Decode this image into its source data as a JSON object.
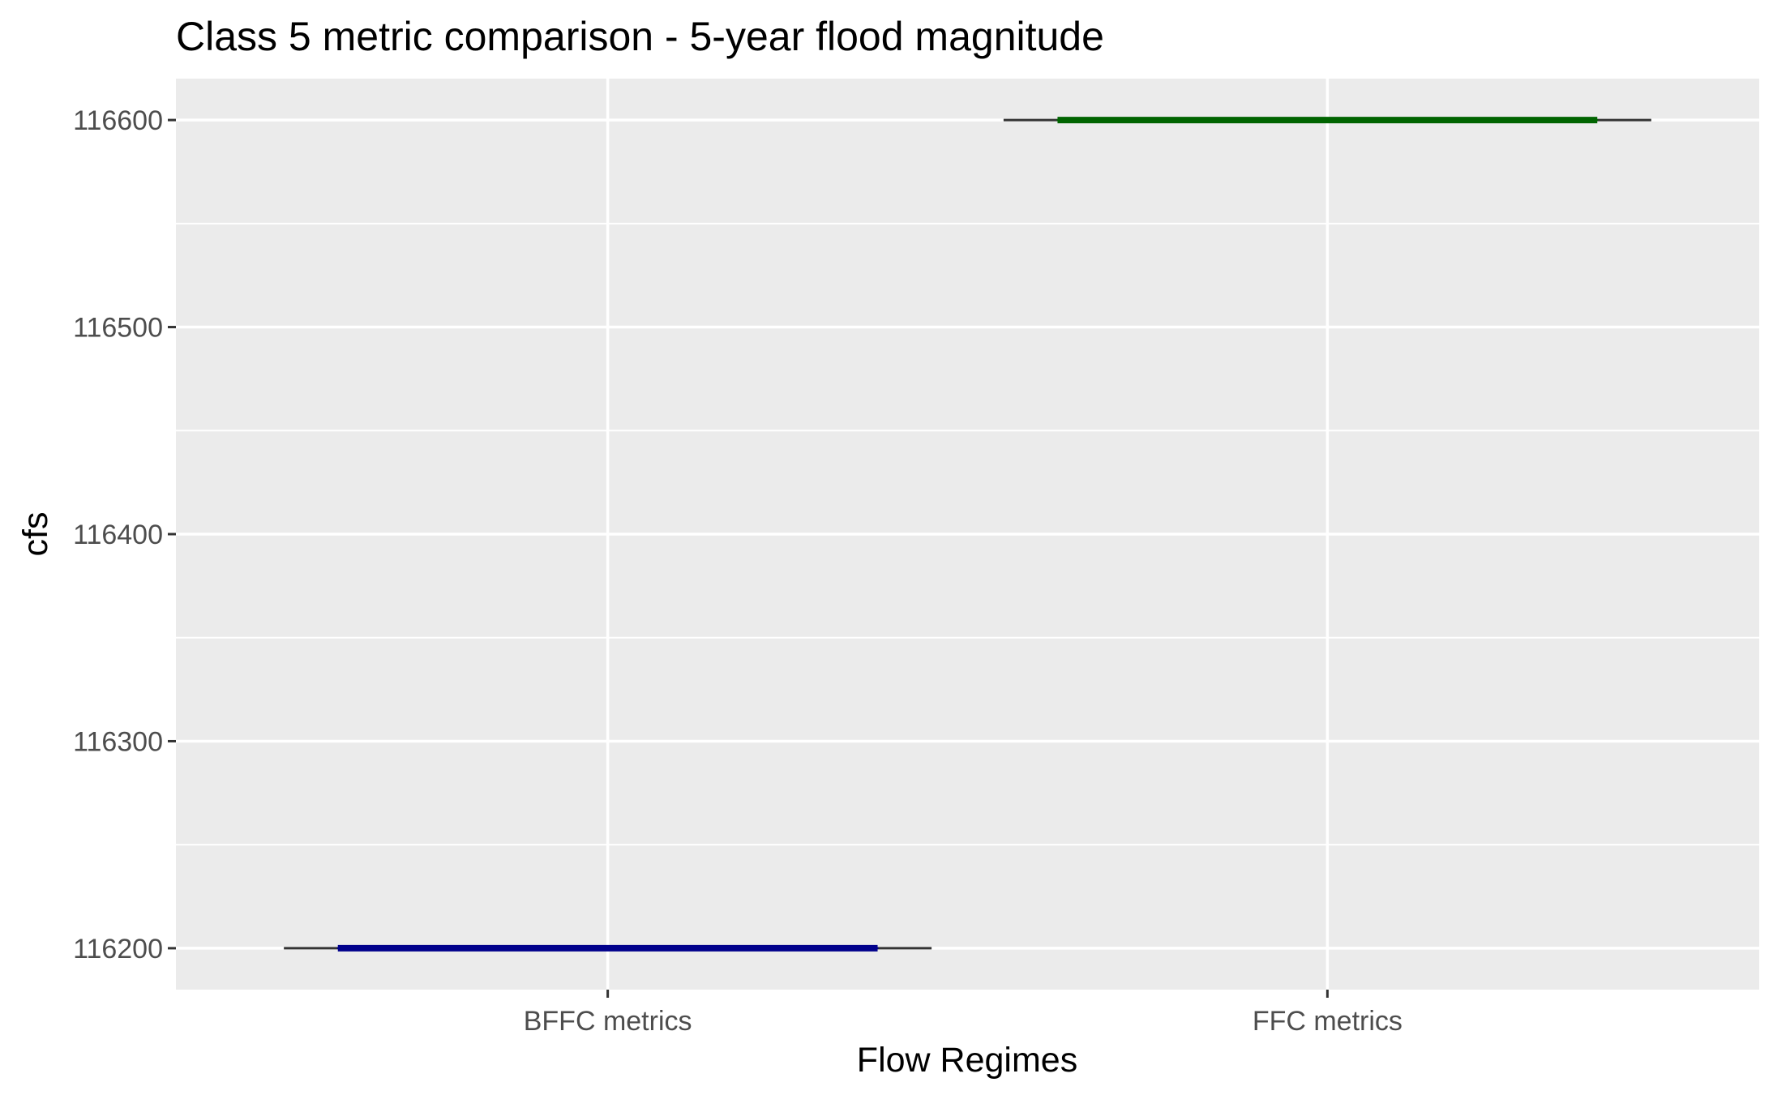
{
  "chart_data": {
    "type": "boxplot",
    "title": "Class 5 metric comparison - 5-year flood magnitude",
    "xlabel": "Flow Regimes",
    "ylabel": "cfs",
    "categories": [
      "BFFC metrics",
      "FFC metrics"
    ],
    "series": [
      {
        "category": "BFFC metrics",
        "min": 116200,
        "q1": 116200,
        "median": 116200,
        "q3": 116200,
        "max": 116200,
        "color": "#00008b"
      },
      {
        "category": "FFC metrics",
        "min": 116600,
        "q1": 116600,
        "median": 116600,
        "q3": 116600,
        "max": 116600,
        "color": "#006400"
      }
    ],
    "ylim": [
      116180,
      116620
    ],
    "yticks": [
      116200,
      116300,
      116400,
      116500,
      116600
    ],
    "yticks_labels": [
      "116200",
      "116300",
      "116400",
      "116500",
      "116600"
    ],
    "grid": true,
    "panel_background": "#ebebeb",
    "grid_color": "#ffffff",
    "whisker_color": "#333333"
  }
}
